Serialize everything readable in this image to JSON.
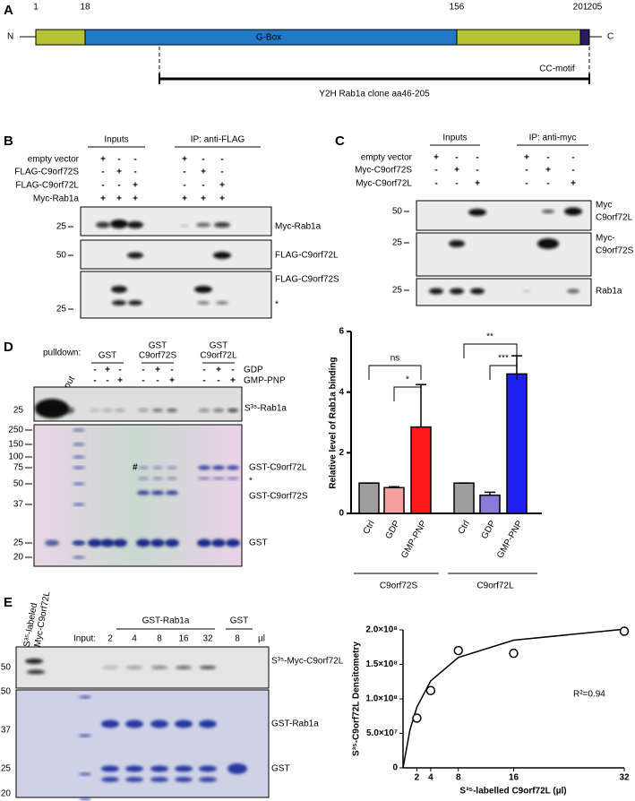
{
  "panel_a": {
    "label": "A",
    "n_term": "N",
    "c_term": "C",
    "positions": [
      1,
      18,
      156,
      201,
      205
    ],
    "domain": "G-Box",
    "motif": "CC-motif",
    "clone": "Y2H Rab1a clone aa46-205"
  },
  "panel_b": {
    "label": "B",
    "groups": [
      "Inputs",
      "IP: anti-FLAG"
    ],
    "rows": [
      {
        "name": "empty vector",
        "signs": [
          "+",
          "-",
          "-",
          "+",
          "-",
          "-"
        ]
      },
      {
        "name": "FLAG-C9orf72S",
        "signs": [
          "-",
          "+",
          "-",
          "-",
          "+",
          "-"
        ]
      },
      {
        "name": "FLAG-C9orf72L",
        "signs": [
          "-",
          "-",
          "+",
          "-",
          "-",
          "+"
        ]
      },
      {
        "name": "Myc-Rab1a",
        "signs": [
          "+",
          "+",
          "+",
          "+",
          "+",
          "+"
        ]
      }
    ],
    "markers": [
      25,
      50,
      25
    ],
    "bands": [
      "Myc-Rab1a",
      "FLAG-C9orf72L",
      "FLAG-C9orf72S",
      "*"
    ]
  },
  "panel_c": {
    "label": "C",
    "groups": [
      "Inputs",
      "IP: anti-myc"
    ],
    "rows": [
      {
        "name": "empty vector",
        "signs": [
          "+",
          "-",
          "-",
          "+",
          "-",
          "-"
        ]
      },
      {
        "name": "Myc-C9orf72S",
        "signs": [
          "-",
          "+",
          "-",
          "-",
          "+",
          "-"
        ]
      },
      {
        "name": "Myc-C9orf72L",
        "signs": [
          "-",
          "-",
          "+",
          "-",
          "-",
          "+"
        ]
      }
    ],
    "markers": [
      50,
      25,
      25
    ],
    "bands": [
      [
        "Myc",
        "C9orf72L"
      ],
      [
        "Myc-",
        "C9orf72S"
      ],
      [
        "Rab1a"
      ]
    ]
  },
  "panel_d": {
    "label": "D",
    "pulldown": "pulldown:",
    "input": "Input",
    "groups": [
      [
        "GST"
      ],
      [
        "GST",
        "C9orf72S"
      ],
      [
        "GST",
        "C9orf72L"
      ]
    ],
    "rows": [
      {
        "name": "GDP",
        "signs": [
          "-",
          "+",
          "-",
          "-",
          "+",
          "-",
          "-",
          "+",
          "-"
        ]
      },
      {
        "name": "GMP-PNP",
        "signs": [
          "-",
          "-",
          "+",
          "-",
          "-",
          "+",
          "-",
          "-",
          "+"
        ]
      }
    ],
    "blot_marker": 25,
    "blot_label": "S³⁵-Rab1a",
    "gel_markers": [
      250,
      150,
      100,
      75,
      50,
      37,
      25,
      20
    ],
    "gel_bands": [
      "GST-C9orf72L",
      "*",
      "GST-C9orf72S",
      "GST"
    ],
    "hash": "#"
  },
  "panel_e": {
    "label": "E",
    "input_label": [
      "S³⁵-labeled",
      "Myc-C9orf72L"
    ],
    "input": "Input:",
    "groups": [
      "GST-Rab1a",
      "GST"
    ],
    "lanes": [
      2,
      4,
      8,
      16,
      32,
      8
    ],
    "unit": "µl",
    "blot_marker": 50,
    "blot_label": "S³⁵-Myc-C9orf72L",
    "gel_markers": [
      50,
      37,
      25,
      20
    ],
    "gel_bands": [
      "GST-Rab1a",
      "GST"
    ]
  },
  "chart_data": [
    {
      "type": "bar",
      "y_label": "Relative level of Rab1a binding",
      "categories": [
        "Ctrl",
        "GDP",
        "GMP-PNP",
        "Ctrl",
        "GDP",
        "GMP-PNP"
      ],
      "values": [
        1,
        0.85,
        2.85,
        1,
        0.6,
        4.6
      ],
      "errors": [
        0,
        0.03,
        1.4,
        0,
        0.1,
        0.6
      ],
      "colors": [
        "#9e9e9e",
        "#f4a0a0",
        "#ff1a1a",
        "#9e9e9e",
        "#8c7ad8",
        "#1f1ff0"
      ],
      "groups": [
        "C9orf72S",
        "C9orf72L"
      ],
      "annotations": [
        "ns",
        "*",
        "**",
        "***"
      ],
      "ylim": [
        0,
        6
      ],
      "yticks": [
        0,
        2,
        4,
        6
      ]
    },
    {
      "type": "scatter",
      "y_label": "S³⁵-C9orf72L Densitometry",
      "x_label": "S³⁵-labelled C9orf72L (µl)",
      "annotation": "R²=0.94",
      "x": [
        2,
        4,
        8,
        16,
        32
      ],
      "values": [
        72000000,
        112000000,
        170000000,
        166000000,
        198000000
      ],
      "fit": {
        "x": [
          0,
          1,
          2,
          4,
          8,
          16,
          32
        ],
        "values": [
          0,
          55000000,
          88000000,
          126000000,
          160000000,
          185000000,
          201000000
        ]
      },
      "xlim": [
        0,
        32
      ],
      "xticks": [
        2,
        4,
        8,
        16,
        32
      ],
      "ylim": [
        0,
        200000000
      ],
      "yticks": [
        0,
        {
          "value": 50000000,
          "label": "5.0×10⁷"
        },
        {
          "value": 100000000,
          "label": "1.0×10⁸"
        },
        {
          "value": 150000000,
          "label": "1.5×10⁸"
        },
        {
          "value": 200000000,
          "label": "2.0×10⁸"
        }
      ]
    }
  ]
}
